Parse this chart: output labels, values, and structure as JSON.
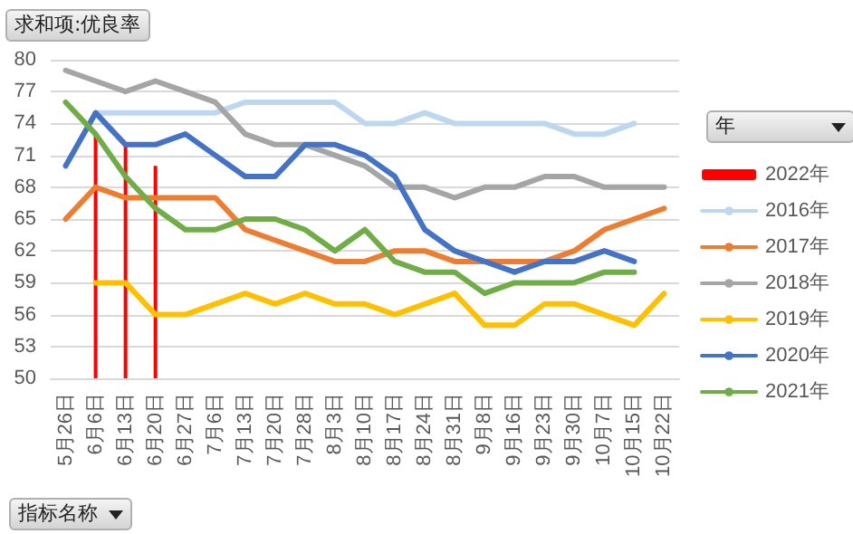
{
  "chart_data": {
    "type": "line",
    "title": "求和项:优良率",
    "xlabel": "指标名称",
    "legend_title": "年",
    "categories": [
      "5月26日",
      "6月6日",
      "6月13日",
      "6月20日",
      "6月27日",
      "7月6日",
      "7月13日",
      "7月20日",
      "7月28日",
      "8月3日",
      "8月10日",
      "8月17日",
      "8月24日",
      "8月31日",
      "9月8日",
      "9月16日",
      "9月23日",
      "9月30日",
      "10月7日",
      "10月15日",
      "10月22日"
    ],
    "series": [
      {
        "name": "2022年",
        "type": "bar",
        "color": "#ff0000",
        "values": [
          null,
          73,
          72,
          70,
          null,
          null,
          null,
          null,
          null,
          null,
          null,
          null,
          null,
          null,
          null,
          null,
          null,
          null,
          null,
          null,
          null
        ]
      },
      {
        "name": "2016年",
        "color": "#bdd7ee",
        "values": [
          null,
          75,
          75,
          75,
          75,
          75,
          76,
          76,
          76,
          76,
          74,
          74,
          75,
          74,
          74,
          74,
          74,
          73,
          73,
          74,
          null
        ]
      },
      {
        "name": "2017年",
        "color": "#ed7d31",
        "values": [
          65,
          68,
          67,
          67,
          67,
          67,
          64,
          63,
          62,
          61,
          61,
          62,
          62,
          61,
          61,
          61,
          61,
          62,
          64,
          65,
          66
        ]
      },
      {
        "name": "2018年",
        "color": "#a5a5a5",
        "values": [
          79,
          78,
          77,
          78,
          77,
          76,
          73,
          72,
          72,
          71,
          70,
          68,
          68,
          67,
          68,
          68,
          69,
          69,
          68,
          68,
          68
        ]
      },
      {
        "name": "2019年",
        "color": "#ffc000",
        "values": [
          null,
          59,
          59,
          56,
          56,
          57,
          58,
          57,
          58,
          57,
          57,
          56,
          57,
          58,
          55,
          55,
          57,
          57,
          56,
          55,
          58
        ]
      },
      {
        "name": "2020年",
        "color": "#4472c4",
        "values": [
          70,
          75,
          72,
          72,
          73,
          71,
          69,
          69,
          72,
          72,
          71,
          69,
          64,
          62,
          61,
          60,
          61,
          61,
          62,
          61,
          null
        ]
      },
      {
        "name": "2021年",
        "color": "#70ad47",
        "values": [
          76,
          73,
          69,
          66,
          64,
          64,
          65,
          65,
          64,
          62,
          64,
          61,
          60,
          60,
          58,
          59,
          59,
          59,
          60,
          60,
          null
        ]
      }
    ],
    "ylim": [
      50,
      80
    ],
    "yticks": [
      50,
      53,
      56,
      59,
      62,
      65,
      68,
      71,
      74,
      77,
      80
    ],
    "grid": "y",
    "legend": "right",
    "marker": "none",
    "line_style": "solid"
  }
}
